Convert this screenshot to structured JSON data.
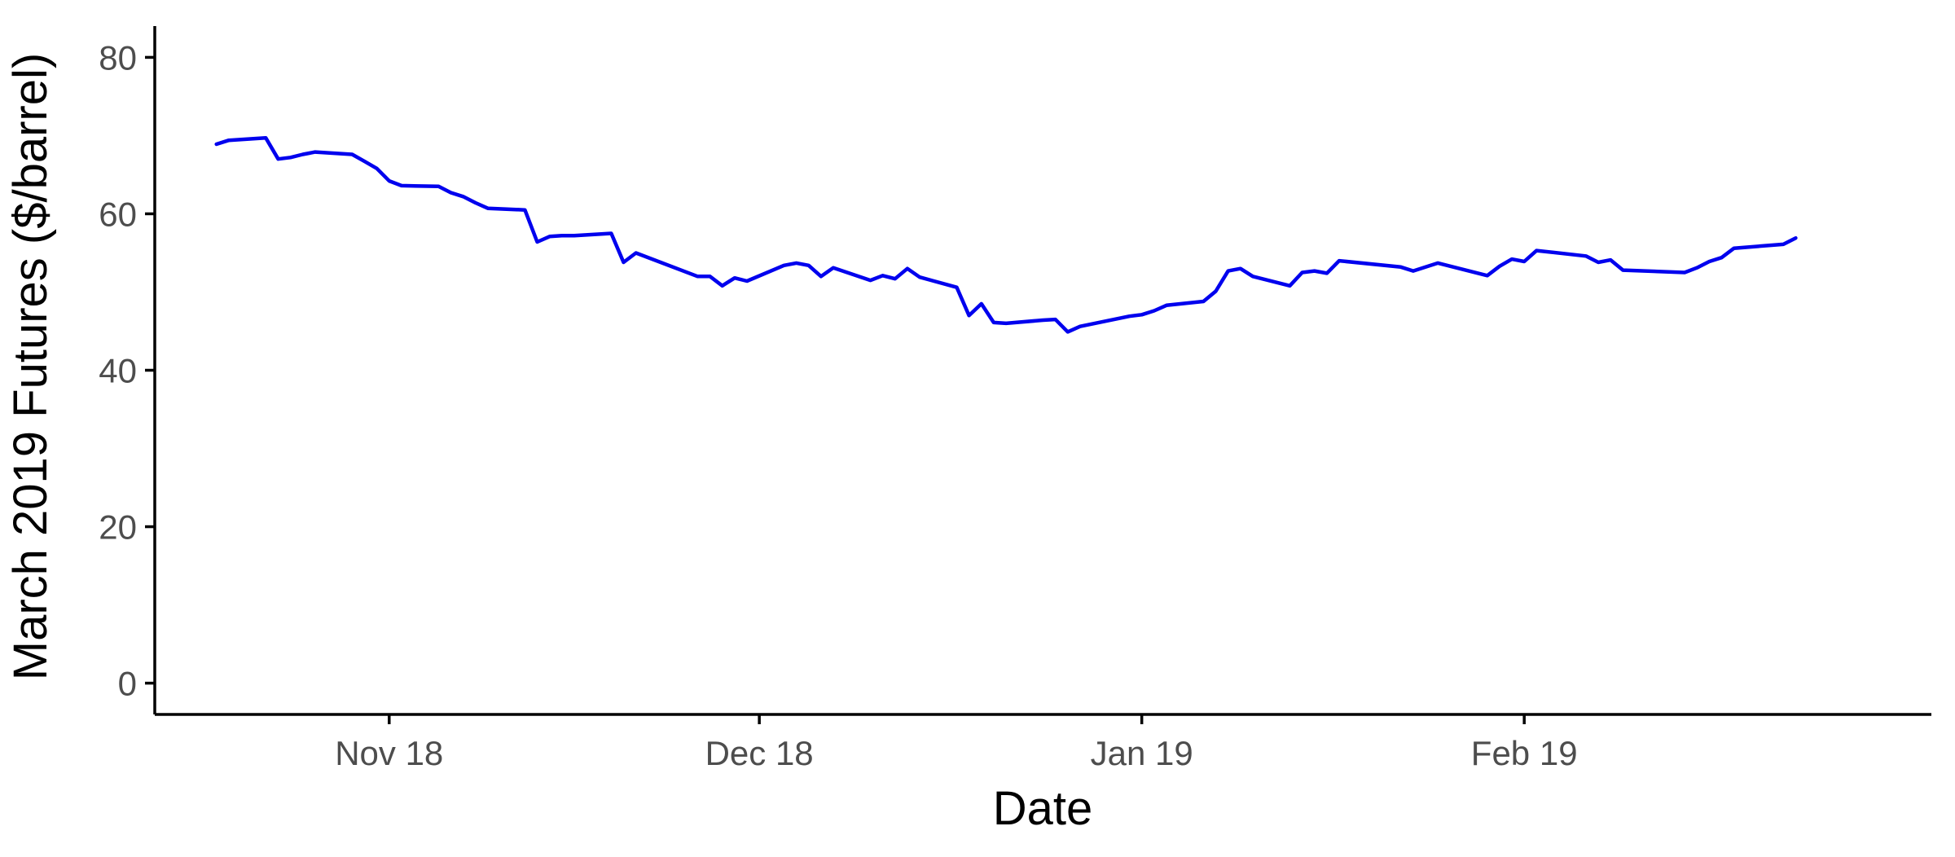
{
  "chart_data": {
    "type": "line",
    "title": "",
    "xlabel": "Date",
    "ylabel": "March 2019 Futures ($/barrel)",
    "x_ticks": [
      {
        "date": "2018-11-01",
        "label": "Nov 18"
      },
      {
        "date": "2018-12-01",
        "label": "Dec 18"
      },
      {
        "date": "2019-01-01",
        "label": "Jan 19"
      },
      {
        "date": "2019-02-01",
        "label": "Feb 19"
      }
    ],
    "y_ticks": [
      0,
      20,
      40,
      60,
      80
    ],
    "xlim": [
      "2018-10-13",
      "2019-03-06"
    ],
    "ylim": [
      -4,
      84
    ],
    "grid": false,
    "legend": "none",
    "series": [
      {
        "color": "#0000ee",
        "points": [
          [
            "2018-10-18",
            68.9
          ],
          [
            "2018-10-19",
            69.4
          ],
          [
            "2018-10-22",
            69.7
          ],
          [
            "2018-10-23",
            67.0
          ],
          [
            "2018-10-24",
            67.2
          ],
          [
            "2018-10-25",
            67.6
          ],
          [
            "2018-10-26",
            67.9
          ],
          [
            "2018-10-29",
            67.6
          ],
          [
            "2018-10-30",
            66.7
          ],
          [
            "2018-10-31",
            65.8
          ],
          [
            "2018-11-01",
            64.2
          ],
          [
            "2018-11-02",
            63.6
          ],
          [
            "2018-11-05",
            63.5
          ],
          [
            "2018-11-06",
            62.7
          ],
          [
            "2018-11-07",
            62.2
          ],
          [
            "2018-11-08",
            61.4
          ],
          [
            "2018-11-09",
            60.7
          ],
          [
            "2018-11-12",
            60.5
          ],
          [
            "2018-11-13",
            56.4
          ],
          [
            "2018-11-14",
            57.1
          ],
          [
            "2018-11-15",
            57.2
          ],
          [
            "2018-11-16",
            57.2
          ],
          [
            "2018-11-19",
            57.5
          ],
          [
            "2018-11-20",
            53.8
          ],
          [
            "2018-11-21",
            55.0
          ],
          [
            "2018-11-26",
            52.0
          ],
          [
            "2018-11-27",
            52.0
          ],
          [
            "2018-11-28",
            50.8
          ],
          [
            "2018-11-29",
            51.8
          ],
          [
            "2018-11-30",
            51.4
          ],
          [
            "2018-12-03",
            53.4
          ],
          [
            "2018-12-04",
            53.7
          ],
          [
            "2018-12-05",
            53.4
          ],
          [
            "2018-12-06",
            52.0
          ],
          [
            "2018-12-07",
            53.1
          ],
          [
            "2018-12-10",
            51.5
          ],
          [
            "2018-12-11",
            52.1
          ],
          [
            "2018-12-12",
            51.7
          ],
          [
            "2018-12-13",
            53.0
          ],
          [
            "2018-12-14",
            51.9
          ],
          [
            "2018-12-17",
            50.6
          ],
          [
            "2018-12-18",
            47.0
          ],
          [
            "2018-12-19",
            48.5
          ],
          [
            "2018-12-20",
            46.1
          ],
          [
            "2018-12-21",
            46.0
          ],
          [
            "2018-12-24",
            46.4
          ],
          [
            "2018-12-25",
            46.5
          ],
          [
            "2018-12-26",
            44.9
          ],
          [
            "2018-12-27",
            45.6
          ],
          [
            "2018-12-31",
            46.9
          ],
          [
            "2019-01-01",
            47.1
          ],
          [
            "2019-01-02",
            47.6
          ],
          [
            "2019-01-03",
            48.3
          ],
          [
            "2019-01-06",
            48.8
          ],
          [
            "2019-01-07",
            50.1
          ],
          [
            "2019-01-08",
            52.7
          ],
          [
            "2019-01-09",
            53.0
          ],
          [
            "2019-01-10",
            52.0
          ],
          [
            "2019-01-13",
            50.8
          ],
          [
            "2019-01-14",
            52.5
          ],
          [
            "2019-01-15",
            52.7
          ],
          [
            "2019-01-16",
            52.4
          ],
          [
            "2019-01-17",
            54.0
          ],
          [
            "2019-01-22",
            53.2
          ],
          [
            "2019-01-23",
            52.7
          ],
          [
            "2019-01-25",
            53.7
          ],
          [
            "2019-01-29",
            52.1
          ],
          [
            "2019-01-30",
            53.3
          ],
          [
            "2019-01-31",
            54.2
          ],
          [
            "2019-02-01",
            53.9
          ],
          [
            "2019-02-02",
            55.3
          ],
          [
            "2019-02-06",
            54.6
          ],
          [
            "2019-02-07",
            53.8
          ],
          [
            "2019-02-08",
            54.1
          ],
          [
            "2019-02-09",
            52.8
          ],
          [
            "2019-02-14",
            52.5
          ],
          [
            "2019-02-15",
            53.1
          ],
          [
            "2019-02-16",
            53.9
          ],
          [
            "2019-02-17",
            54.4
          ],
          [
            "2019-02-18",
            55.6
          ],
          [
            "2019-02-22",
            56.1
          ],
          [
            "2019-02-23",
            56.9
          ]
        ]
      }
    ]
  }
}
